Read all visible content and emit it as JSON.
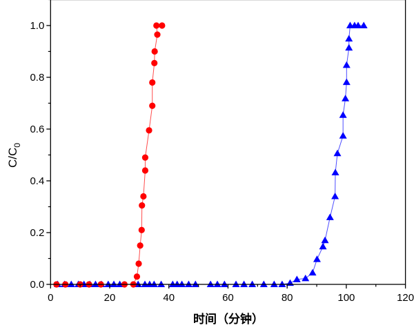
{
  "chart_data": {
    "type": "line",
    "title": "",
    "xlabel": "时间（分钟）",
    "ylabel": {
      "main": "C/C",
      "subscript": "0"
    },
    "xlim": [
      0,
      120
    ],
    "ylim": [
      0,
      1.1
    ],
    "xticks": [
      "0",
      "20",
      "40",
      "60",
      "80",
      "100",
      "120"
    ],
    "yticks": [
      "0.0",
      "0.2",
      "0.4",
      "0.6",
      "0.8",
      "1.0"
    ],
    "xtick_values": [
      0,
      20,
      40,
      60,
      80,
      100,
      120
    ],
    "ytick_values": [
      0,
      0.2,
      0.4,
      0.6,
      0.8,
      1.0
    ],
    "grid": false,
    "legend": "none",
    "series": [
      {
        "color": "#ff0000",
        "marker": "circle",
        "x": [
          2,
          5,
          10,
          13,
          17,
          25,
          28,
          29.2,
          29.8,
          30.3,
          30.8,
          30.9,
          31.4,
          32.0,
          32.0,
          33.3,
          34.4,
          34.4,
          35.1,
          35.2,
          36.1,
          35.8,
          37.7
        ],
        "y": [
          0,
          0,
          0,
          0,
          0,
          0,
          0,
          0.03,
          0.08,
          0.15,
          0.21,
          0.305,
          0.34,
          0.44,
          0.49,
          0.595,
          0.69,
          0.78,
          0.855,
          0.9,
          0.965,
          1.0,
          1.0
        ]
      },
      {
        "color": "#0000ff",
        "marker": "triangle",
        "x": [
          2.4,
          4.7,
          7.0,
          9.4,
          11.3,
          13.3,
          15.2,
          17.2,
          19.5,
          21.4,
          23.4,
          29.6,
          31.9,
          33.5,
          35.0,
          37.4,
          41.3,
          42.8,
          44.4,
          46.7,
          49.0,
          54.1,
          56.4,
          58.8,
          62.7,
          65.4,
          68.2,
          72.1,
          75.6,
          78.3,
          81.0,
          83.3,
          86.2,
          88.6,
          90.1,
          92.1,
          92.8,
          94.5,
          96.2,
          96.3,
          97.0,
          98.9,
          98.9,
          99.7,
          100.1,
          100.1,
          100.9,
          100.9,
          101.3,
          102.8,
          104.0,
          105.9
        ],
        "y": [
          0,
          0,
          0,
          0,
          0,
          0,
          0,
          0,
          0,
          0,
          0,
          0,
          0,
          0,
          0,
          0,
          0,
          0,
          0,
          0,
          0,
          0,
          0,
          0,
          0,
          0,
          0,
          0,
          0,
          0,
          0.005,
          0.019,
          0.023,
          0.045,
          0.097,
          0.146,
          0.17,
          0.259,
          0.34,
          0.432,
          0.506,
          0.574,
          0.654,
          0.718,
          0.781,
          0.847,
          0.914,
          0.949,
          1.0,
          1.0,
          1.0,
          1.0
        ]
      }
    ]
  }
}
